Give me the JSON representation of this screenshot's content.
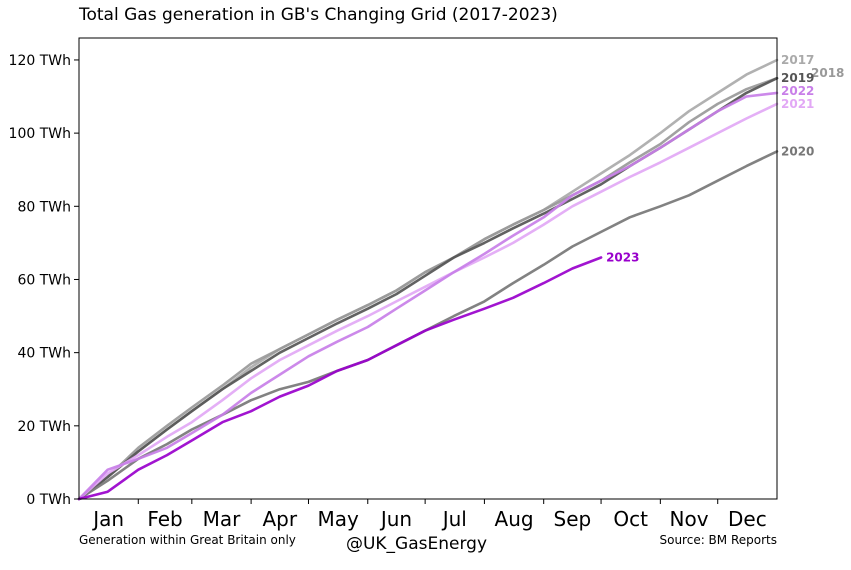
{
  "title": "Total Gas generation in GB's Changing Grid (2017-2023)",
  "footer": {
    "left": "Generation within Great Britain only",
    "center": "@UK_GasEnergy",
    "right": "Source: BM Reports"
  },
  "chart_data": {
    "type": "line",
    "title": "Total Gas generation in GB's Changing Grid (2017-2023)",
    "x_ticks": [
      "Jan",
      "Feb",
      "Mar",
      "Apr",
      "May",
      "Jun",
      "Jul",
      "Aug",
      "Sep",
      "Oct",
      "Nov",
      "Dec"
    ],
    "xlim_days": [
      0,
      365
    ],
    "y_unit": "TWh",
    "y_ticks": [
      "0 TWh",
      "20 TWh",
      "40 TWh",
      "60 TWh",
      "80 TWh",
      "100 TWh",
      "120 TWh"
    ],
    "ylim": [
      0,
      126
    ],
    "grid": false,
    "legend": "labels at line ends",
    "series": [
      {
        "name": "2017",
        "color": "#aaaaaa",
        "x": [
          0,
          15,
          31,
          46,
          59,
          75,
          90,
          105,
          120,
          135,
          151,
          166,
          181,
          196,
          212,
          227,
          243,
          258,
          273,
          288,
          304,
          319,
          334,
          349,
          365
        ],
        "y": [
          0,
          6,
          13,
          19,
          24,
          30,
          36,
          41,
          45,
          49,
          53,
          57,
          62,
          66,
          71,
          75,
          79,
          84,
          89,
          94,
          100,
          106,
          111,
          116,
          120
        ]
      },
      {
        "name": "2018",
        "color": "#999999",
        "x": [
          0,
          15,
          31,
          46,
          59,
          75,
          90,
          105,
          120,
          135,
          151,
          166,
          181,
          196,
          212,
          227,
          243,
          258,
          273,
          288,
          304,
          319,
          334,
          349,
          365
        ],
        "y": [
          0,
          6,
          14,
          20,
          25,
          31,
          37,
          41,
          45,
          49,
          53,
          57,
          62,
          66,
          71,
          75,
          79,
          83,
          87,
          92,
          97,
          103,
          108,
          112,
          115
        ]
      },
      {
        "name": "2019",
        "color": "#555555",
        "x": [
          0,
          15,
          31,
          46,
          59,
          75,
          90,
          105,
          120,
          135,
          151,
          166,
          181,
          196,
          212,
          227,
          243,
          258,
          273,
          288,
          304,
          319,
          334,
          349,
          365
        ],
        "y": [
          0,
          6,
          13,
          19,
          24,
          30,
          35,
          40,
          44,
          48,
          52,
          56,
          61,
          66,
          70,
          74,
          78,
          82,
          86,
          91,
          96,
          101,
          106,
          111,
          115
        ]
      },
      {
        "name": "2020",
        "color": "#777777",
        "x": [
          0,
          15,
          31,
          46,
          59,
          75,
          90,
          105,
          120,
          135,
          151,
          166,
          181,
          196,
          212,
          227,
          243,
          258,
          273,
          288,
          304,
          319,
          334,
          349,
          365
        ],
        "y": [
          0,
          5,
          11,
          15,
          19,
          23,
          27,
          30,
          32,
          35,
          38,
          42,
          46,
          50,
          54,
          59,
          64,
          69,
          73,
          77,
          80,
          83,
          87,
          91,
          95
        ]
      },
      {
        "name": "2021",
        "color": "#e2a8f5",
        "x": [
          0,
          15,
          31,
          46,
          59,
          75,
          90,
          105,
          120,
          135,
          151,
          166,
          181,
          196,
          212,
          227,
          243,
          258,
          273,
          288,
          304,
          319,
          334,
          349,
          365
        ],
        "y": [
          0,
          7,
          12,
          17,
          21,
          27,
          33,
          38,
          42,
          46,
          50,
          54,
          58,
          62,
          66,
          70,
          75,
          80,
          84,
          88,
          92,
          96,
          100,
          104,
          108
        ]
      },
      {
        "name": "2022",
        "color": "#c87fe8",
        "x": [
          0,
          15,
          31,
          46,
          59,
          75,
          90,
          105,
          120,
          135,
          151,
          166,
          181,
          196,
          212,
          227,
          243,
          258,
          273,
          288,
          304,
          319,
          334,
          349,
          365
        ],
        "y": [
          0,
          8,
          11,
          14,
          18,
          23,
          29,
          34,
          39,
          43,
          47,
          52,
          57,
          62,
          67,
          72,
          77,
          83,
          87,
          91,
          96,
          101,
          106,
          110,
          111
        ]
      },
      {
        "name": "2023",
        "color": "#9900cc",
        "x": [
          0,
          15,
          31,
          46,
          59,
          75,
          90,
          105,
          120,
          135,
          151,
          166,
          181,
          196,
          212,
          227,
          243,
          258,
          273
        ],
        "y": [
          0,
          2,
          8,
          12,
          16,
          21,
          24,
          28,
          31,
          35,
          38,
          42,
          46,
          49,
          52,
          55,
          59,
          63,
          66
        ]
      }
    ]
  }
}
